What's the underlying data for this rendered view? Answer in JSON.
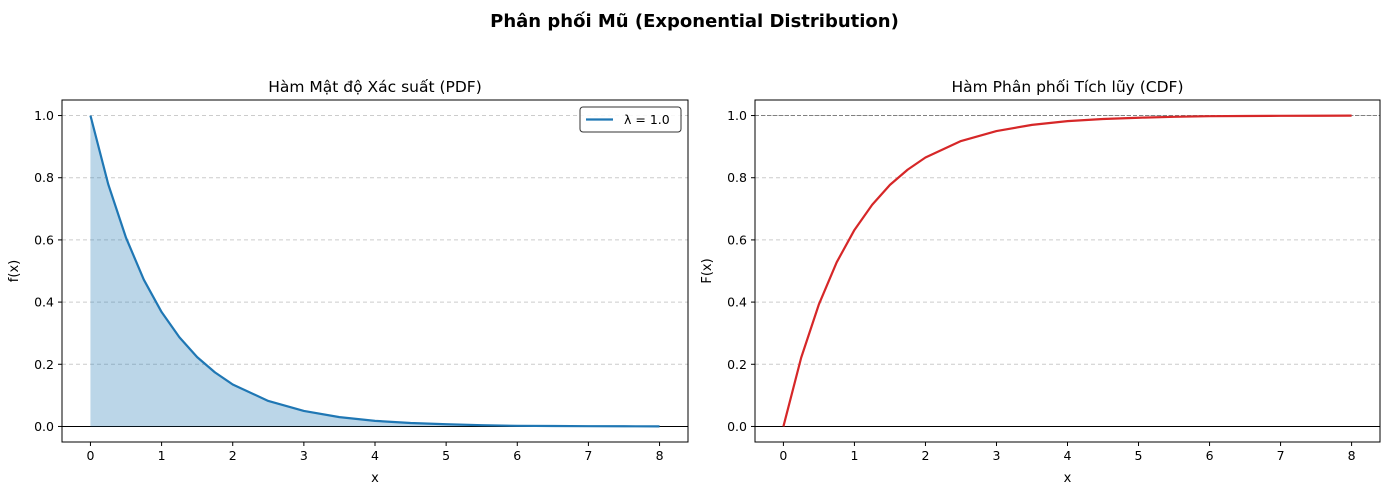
{
  "figure_title": "Phân phối Mũ (Exponential Distribution)",
  "colors": {
    "pdf_line": "#1f77b4",
    "pdf_fill": "#1f77b4",
    "cdf_line": "#d62728",
    "grid": "#cccccc",
    "reference_line": "#808080"
  },
  "chart_data": [
    {
      "type": "area",
      "title": "Hàm Mật độ Xác suất (PDF)",
      "xlabel": "x",
      "ylabel": "f(x)",
      "xlim": [
        -0.4,
        8.4
      ],
      "ylim": [
        -0.05,
        1.05
      ],
      "xticks": [
        0,
        1,
        2,
        3,
        4,
        5,
        6,
        7,
        8
      ],
      "yticks": [
        0.0,
        0.2,
        0.4,
        0.6,
        0.8,
        1.0
      ],
      "xtick_labels": [
        "0",
        "1",
        "2",
        "3",
        "4",
        "5",
        "6",
        "7",
        "8"
      ],
      "ytick_labels": [
        "0.0",
        "0.2",
        "0.4",
        "0.6",
        "0.8",
        "1.0"
      ],
      "grid": "y-dashed",
      "legend_position": "top-right",
      "baseline_y": 0,
      "series": [
        {
          "name": "λ = 1.0",
          "x": [
            0,
            0.25,
            0.5,
            0.75,
            1,
            1.25,
            1.5,
            1.75,
            2,
            2.5,
            3,
            3.5,
            4,
            4.5,
            5,
            5.5,
            6,
            6.5,
            7,
            7.5,
            8
          ],
          "y": [
            1.0,
            0.779,
            0.607,
            0.472,
            0.368,
            0.287,
            0.223,
            0.174,
            0.135,
            0.082,
            0.05,
            0.03,
            0.018,
            0.011,
            0.007,
            0.004,
            0.002,
            0.0015,
            0.0009,
            0.0006,
            0.0003
          ]
        }
      ]
    },
    {
      "type": "line",
      "title": "Hàm Phân phối Tích lũy (CDF)",
      "xlabel": "x",
      "ylabel": "F(x)",
      "xlim": [
        -0.4,
        8.4
      ],
      "ylim": [
        -0.05,
        1.05
      ],
      "xticks": [
        0,
        1,
        2,
        3,
        4,
        5,
        6,
        7,
        8
      ],
      "yticks": [
        0.0,
        0.2,
        0.4,
        0.6,
        0.8,
        1.0
      ],
      "xtick_labels": [
        "0",
        "1",
        "2",
        "3",
        "4",
        "5",
        "6",
        "7",
        "8"
      ],
      "ytick_labels": [
        "0.0",
        "0.2",
        "0.4",
        "0.6",
        "0.8",
        "1.0"
      ],
      "grid": "y-dashed",
      "baseline_y": 0,
      "reference_y": 1.0,
      "series": [
        {
          "x": [
            0,
            0.25,
            0.5,
            0.75,
            1,
            1.25,
            1.5,
            1.75,
            2,
            2.5,
            3,
            3.5,
            4,
            4.5,
            5,
            5.5,
            6,
            6.5,
            7,
            7.5,
            8
          ],
          "y": [
            0.0,
            0.221,
            0.393,
            0.528,
            0.632,
            0.713,
            0.777,
            0.826,
            0.865,
            0.918,
            0.95,
            0.97,
            0.982,
            0.989,
            0.993,
            0.996,
            0.998,
            0.9985,
            0.9991,
            0.9994,
            0.9997
          ]
        }
      ]
    }
  ]
}
